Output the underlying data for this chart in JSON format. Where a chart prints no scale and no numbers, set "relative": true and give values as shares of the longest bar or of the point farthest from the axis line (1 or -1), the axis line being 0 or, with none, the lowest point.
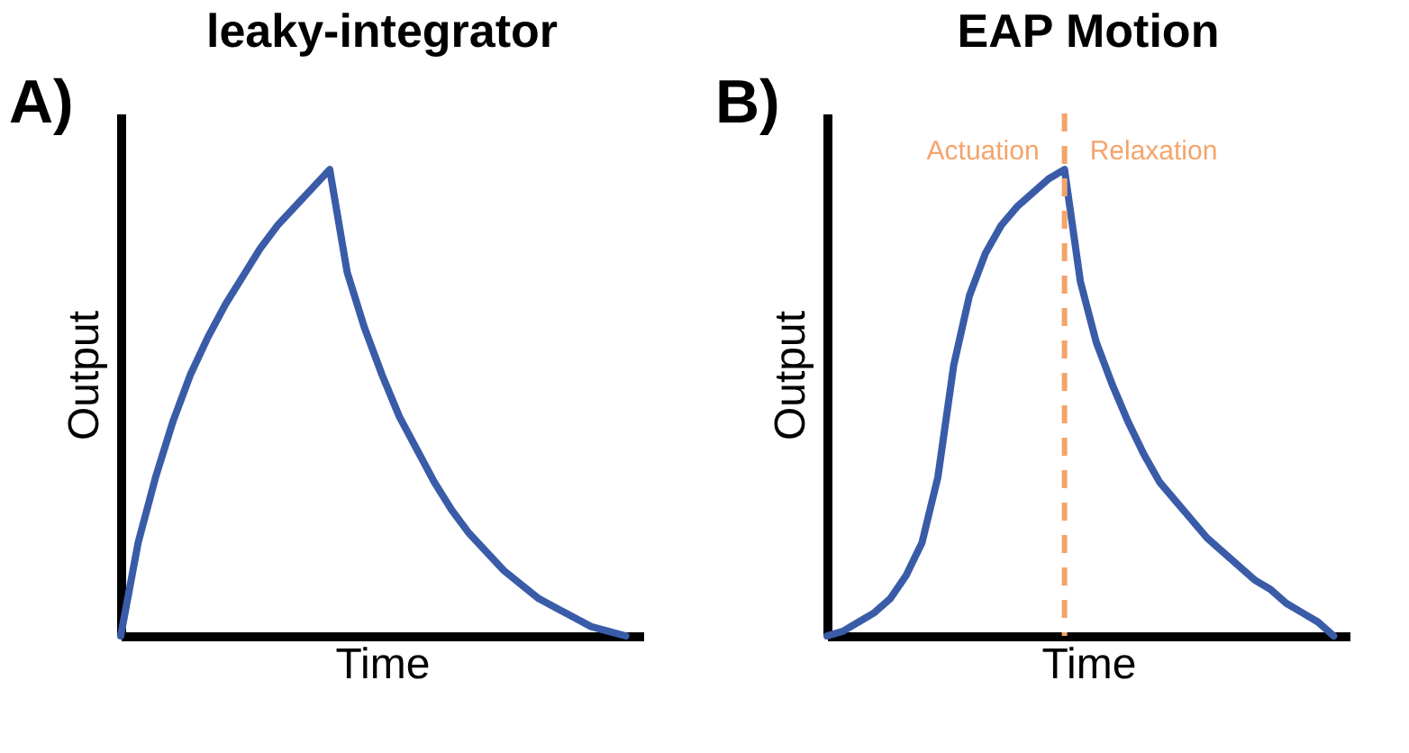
{
  "chart_data": [
    {
      "type": "line",
      "title": "leaky-integrator",
      "xlabel": "Time",
      "ylabel": "Output",
      "relative": true,
      "grid": false,
      "tick_labels": false,
      "annotations": [
        "A)"
      ],
      "categories": [
        null,
        null,
        null,
        null,
        null,
        null,
        null,
        null,
        null,
        null,
        null,
        null,
        null,
        null,
        null,
        null,
        null,
        null,
        null,
        null,
        null,
        null,
        null,
        null,
        null,
        null,
        null,
        null,
        null,
        null
      ],
      "series": [
        {
          "color": "#3a5ca8",
          "values": [
            0,
            0.2,
            0.34,
            0.46,
            0.56,
            0.64,
            0.71,
            0.77,
            0.83,
            0.88,
            0.92,
            0.96,
            1.0,
            0.78,
            0.66,
            0.56,
            0.47,
            0.4,
            0.33,
            0.27,
            0.22,
            0.18,
            0.14,
            0.11,
            0.08,
            0.06,
            0.04,
            0.02,
            0.01,
            0
          ]
        }
      ]
    },
    {
      "type": "line",
      "title": "EAP Motion",
      "xlabel": "Time",
      "ylabel": "Output",
      "relative": true,
      "grid": false,
      "tick_labels": false,
      "annotations": [
        "B)",
        "Actuation",
        "Relaxation"
      ],
      "categories": [
        null,
        null,
        null,
        null,
        null,
        null,
        null,
        null,
        null,
        null,
        null,
        null,
        null,
        null,
        null,
        null,
        null,
        null,
        null,
        null,
        null,
        null,
        null,
        null,
        null,
        null,
        null,
        null,
        null,
        null,
        null,
        null,
        null
      ],
      "series": [
        {
          "color": "#3a5ca8",
          "values": [
            0,
            0.01,
            0.03,
            0.05,
            0.08,
            0.13,
            0.2,
            0.34,
            0.58,
            0.73,
            0.82,
            0.88,
            0.92,
            0.95,
            0.98,
            1.0,
            0.76,
            0.63,
            0.54,
            0.46,
            0.39,
            0.33,
            0.29,
            0.25,
            0.21,
            0.18,
            0.15,
            0.12,
            0.1,
            0.07,
            0.05,
            0.03,
            0
          ]
        }
      ]
    }
  ]
}
